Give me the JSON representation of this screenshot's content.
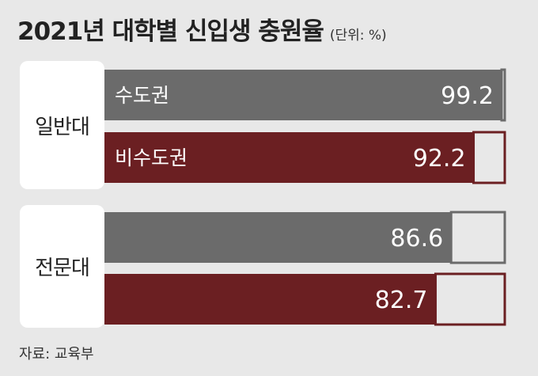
{
  "title": "2021년 대학별 신입생 충원율",
  "unit": "(단위: %)",
  "source": "자료: 교육부",
  "colors": {
    "metro": "#6b6b6b",
    "non_metro": "#6b1f22",
    "background": "#e8e8e8",
    "remainder": "#e8e8e8"
  },
  "chart_data": {
    "type": "bar",
    "orientation": "horizontal",
    "xlim": [
      0,
      100
    ],
    "groups": [
      {
        "name": "일반대",
        "bars": [
          {
            "label": "수도권",
            "value": 99.2,
            "color": "#6b6b6b"
          },
          {
            "label": "비수도권",
            "value": 92.2,
            "color": "#6b1f22"
          }
        ]
      },
      {
        "name": "전문대",
        "bars": [
          {
            "label": "",
            "value": 86.6,
            "color": "#6b6b6b"
          },
          {
            "label": "",
            "value": 82.7,
            "color": "#6b1f22"
          }
        ]
      }
    ]
  }
}
